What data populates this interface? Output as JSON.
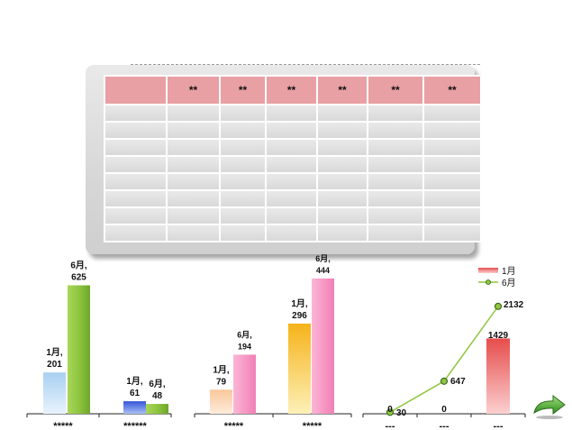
{
  "table": {
    "header": [
      "",
      "**",
      "**",
      "**",
      "**",
      "**",
      "**"
    ],
    "column_widths": [
      67,
      57,
      49,
      55,
      54,
      60,
      62
    ],
    "body_rows": 8
  },
  "chart_data": [
    {
      "type": "bar",
      "categories": [
        "*****",
        "******"
      ],
      "series": [
        {
          "name": "1月",
          "values": [
            201,
            61
          ]
        },
        {
          "name": "6月",
          "values": [
            625,
            48
          ]
        }
      ],
      "data_labels": [
        [
          "1月,\n201",
          "1月,\n61"
        ],
        [
          "6月,\n625",
          "6月,\n48"
        ]
      ],
      "colors": [
        [
          "#a8d0f2",
          "#4a6fe0"
        ],
        [
          "#8ec63f",
          "#8ec63f"
        ]
      ]
    },
    {
      "type": "bar",
      "categories": [
        "*****",
        "*****"
      ],
      "series": [
        {
          "name": "1月",
          "values": [
            79,
            296
          ]
        },
        {
          "name": "6月",
          "values": [
            194,
            444
          ]
        }
      ],
      "data_labels": [
        [
          "1月,\n79",
          "1月,\n296"
        ],
        [
          "6月,\n194",
          "6月,\n444"
        ]
      ],
      "colors": [
        [
          "#f9c79a",
          "#f6b733"
        ],
        [
          "#f79ac6",
          "#f79ac6"
        ]
      ]
    },
    {
      "type": "bar",
      "categories": [
        "---",
        "---",
        "---"
      ],
      "series": [
        {
          "name": "1月",
          "type": "bar",
          "values": [
            0,
            0,
            1429
          ],
          "color": "#e74c4c"
        },
        {
          "name": "6月",
          "type": "line",
          "values": [
            30,
            647,
            2132
          ],
          "color": "#8ec63f"
        }
      ],
      "bar_labels": [
        "0",
        "0",
        "1429"
      ],
      "line_labels": [
        "30",
        "647",
        "2132"
      ],
      "legend": "top-right"
    }
  ]
}
